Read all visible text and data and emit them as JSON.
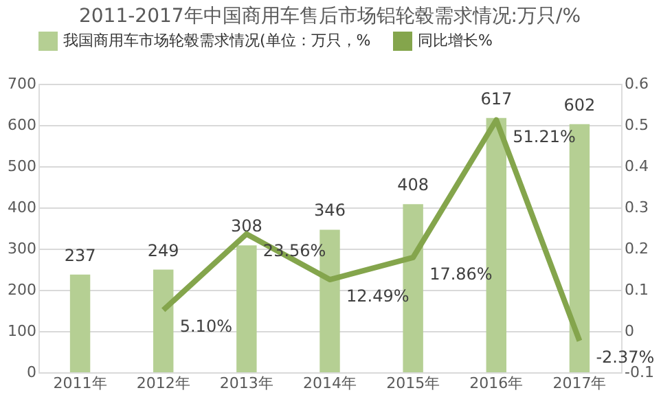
{
  "chart_data": {
    "type": "bar",
    "title": "2011-2017年中国商用车售后市场铝轮毂需求情况:万只/%",
    "categories": [
      "2011年",
      "2012年",
      "2013年",
      "2014年",
      "2015年",
      "2016年",
      "2017年"
    ],
    "series": [
      {
        "name": "我国商用车市场轮毂需求情况(单位：万只，%",
        "color": "#b5cf93",
        "values": [
          237,
          249,
          308,
          346,
          408,
          617,
          602
        ],
        "data_labels": true
      },
      {
        "name": "同比增长%",
        "type": "line",
        "axis": "y2",
        "color": "#84a54c",
        "values": [
          null,
          0.051,
          0.2356,
          0.1249,
          0.1786,
          0.5121,
          -0.0237
        ],
        "value_labels": [
          null,
          "5.10%",
          "23.56%",
          "12.49%",
          "17.86%",
          "51.21%",
          "-2.37%"
        ]
      }
    ],
    "ylim": [
      0,
      700
    ],
    "yticks": [
      0,
      100,
      200,
      300,
      400,
      500,
      600,
      700
    ],
    "y2lim": [
      -0.1,
      0.6
    ],
    "y2ticks": [
      -0.1,
      0,
      0.1,
      0.2,
      0.3,
      0.4,
      0.5,
      0.6
    ],
    "grid": "y",
    "legend": "top",
    "marker": "none",
    "line_style": "solid"
  }
}
